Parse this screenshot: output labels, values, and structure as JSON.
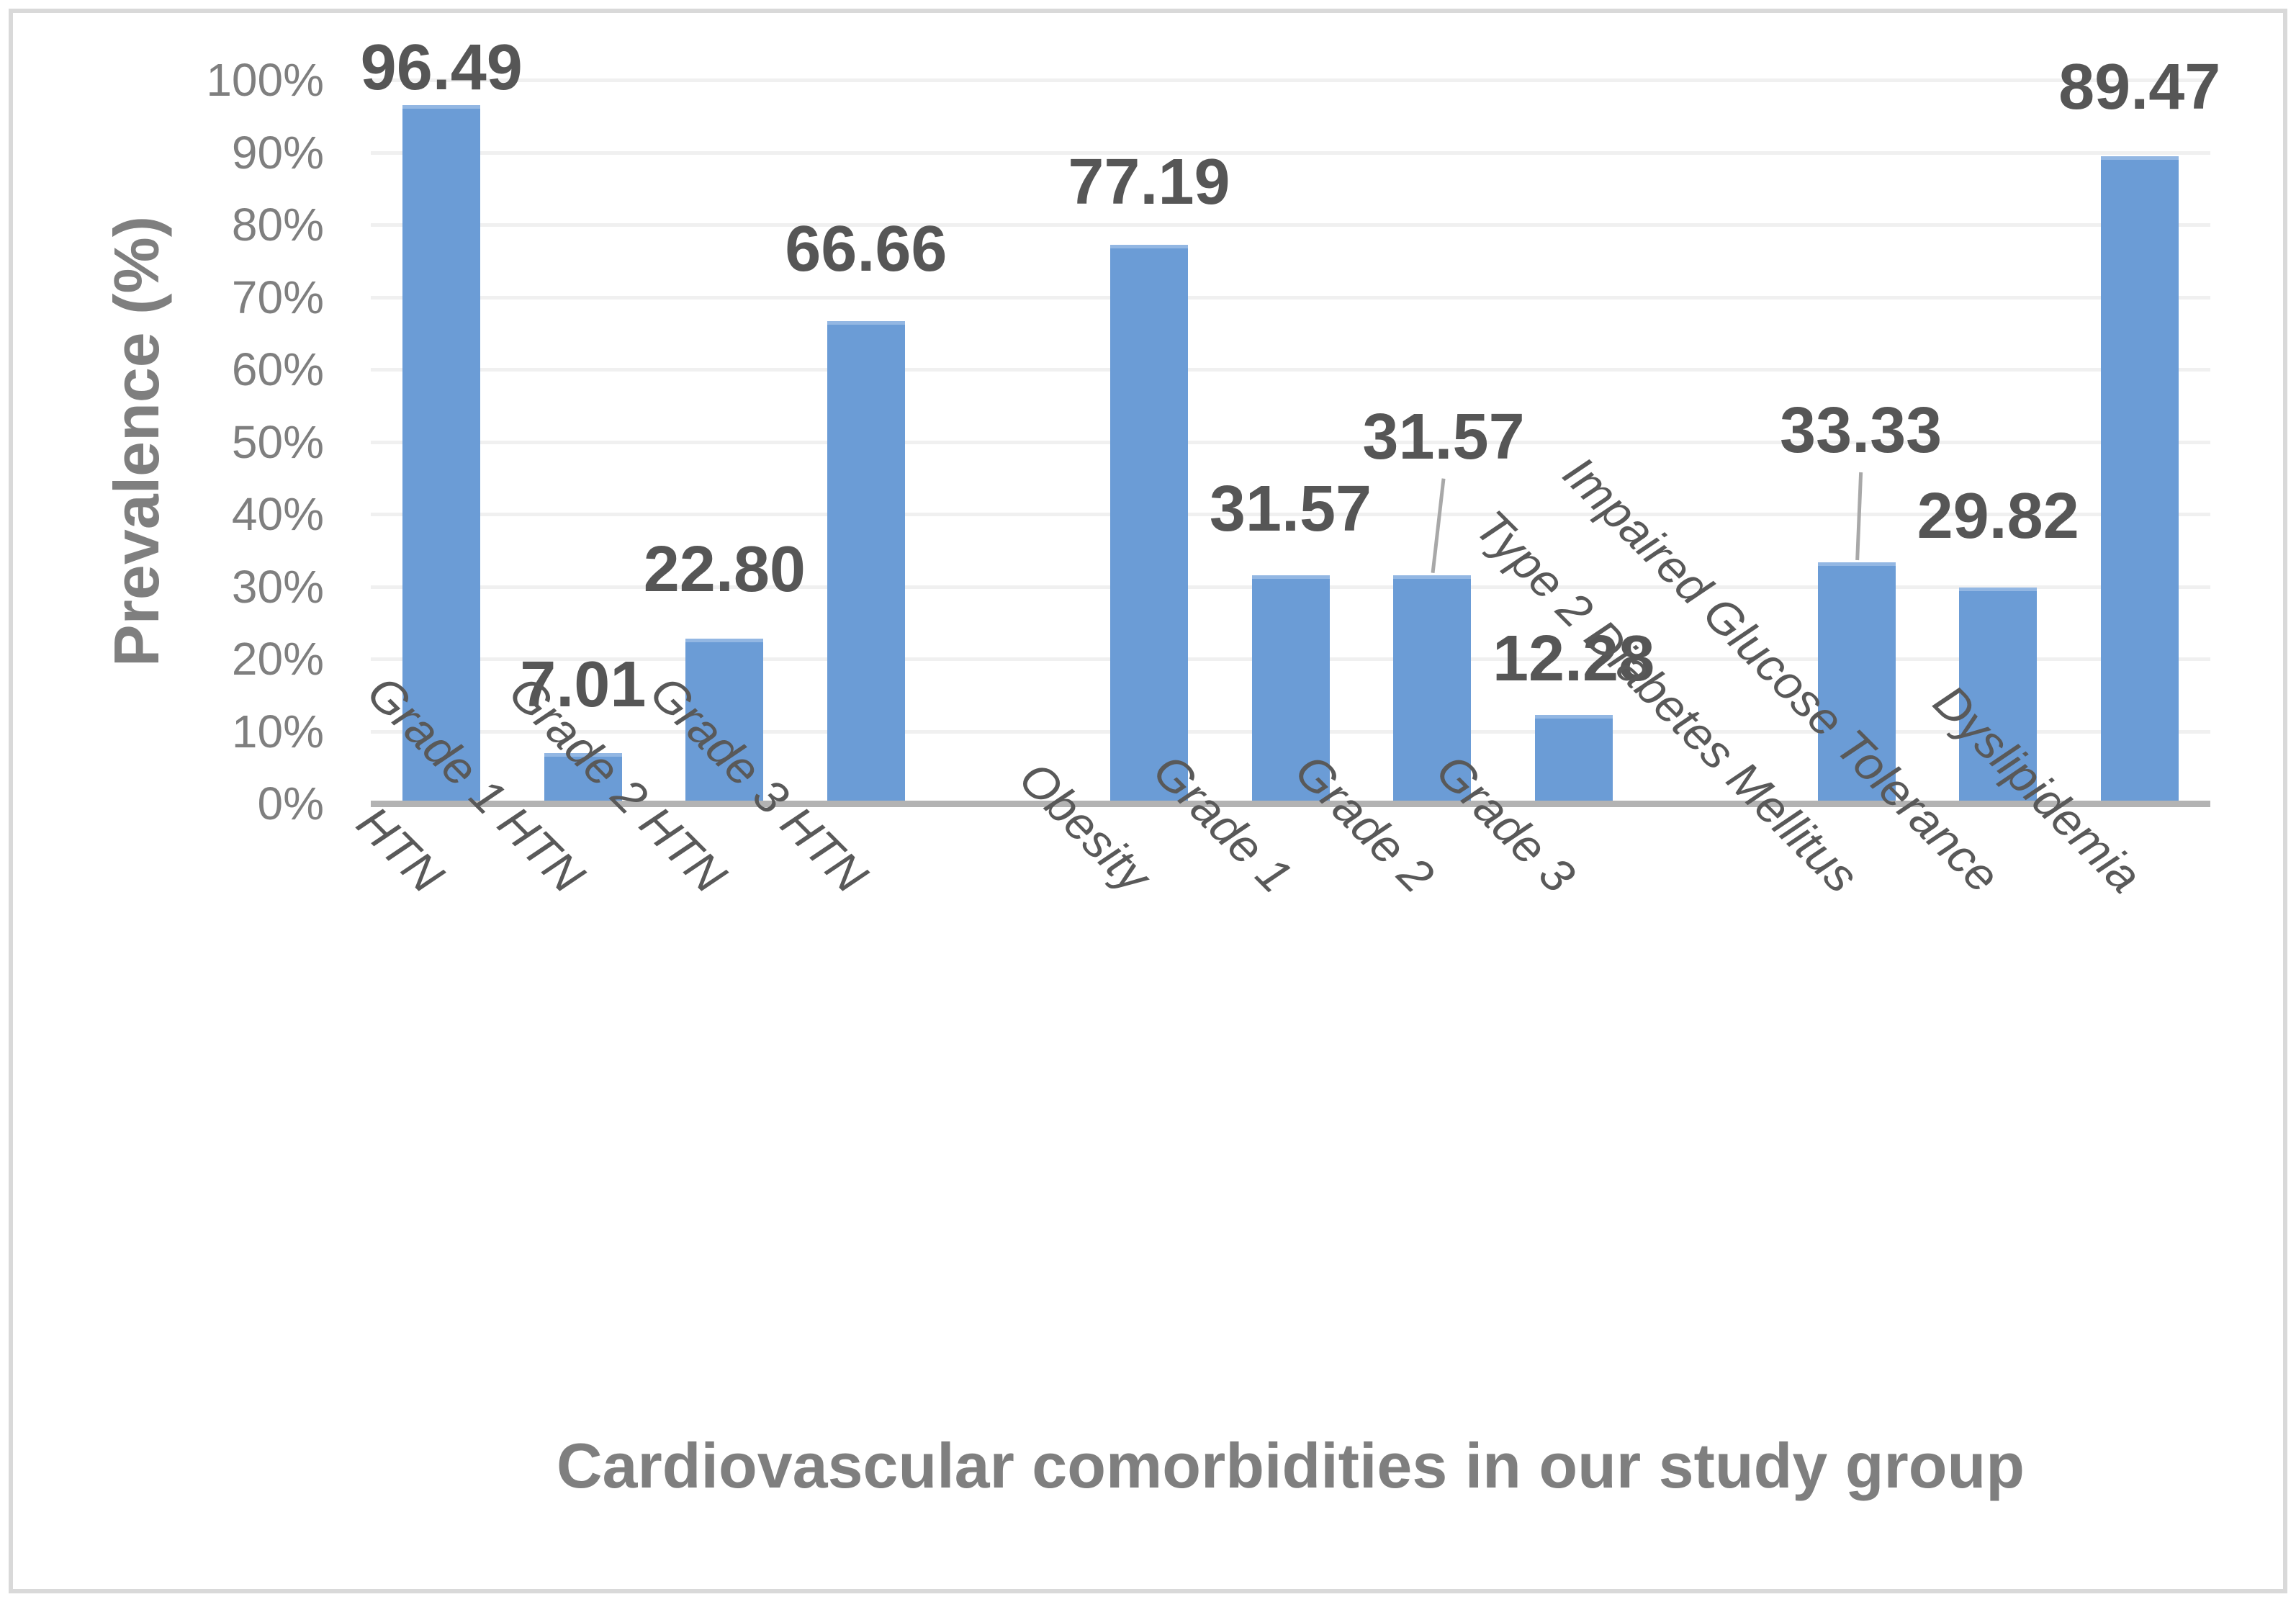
{
  "chart_data": {
    "type": "bar",
    "title": "",
    "xlabel": "Cardiovascular comorbidities in our study group",
    "ylabel": "Prevalence (%)",
    "ylim": [
      0,
      100
    ],
    "ytick_step": 10,
    "ytick_labels": [
      "0%",
      "10%",
      "20%",
      "30%",
      "40%",
      "50%",
      "60%",
      "70%",
      "80%",
      "90%",
      "100%"
    ],
    "grid": true,
    "legend": "none",
    "bar_color": "#6b9cd6",
    "gridline_color": "#f0f0f0",
    "axis_line_color": "#b3b3b3",
    "data_label_color": "#565656",
    "tick_label_color": "#7f7f7f",
    "axis_title_color": "#7f7f7f",
    "leader_line_color": "#a8a8a8",
    "categories": [
      "HTN",
      "Grade 1 HTN",
      "Grade 2 HTN",
      "Grade 3 HTN",
      "Obesity",
      "Grade 1",
      "Grade 2",
      "Grade 3",
      "Type 2 Diabetes Mellitus",
      "Impaired Glucose Tolerance",
      "Dyslipidemia"
    ],
    "values": [
      96.49,
      7.01,
      22.8,
      66.66,
      77.19,
      31.57,
      31.57,
      12.28,
      33.33,
      29.82,
      89.47
    ],
    "data_labels": [
      "96.49",
      "7.01",
      "22.80",
      "66.66",
      "77.19",
      "31.57",
      "31.57",
      "12.28",
      "33.33",
      "29.82",
      "89.47"
    ],
    "gap_after_indices": [
      3,
      7
    ],
    "leader_line_indices": [
      6,
      8
    ]
  }
}
